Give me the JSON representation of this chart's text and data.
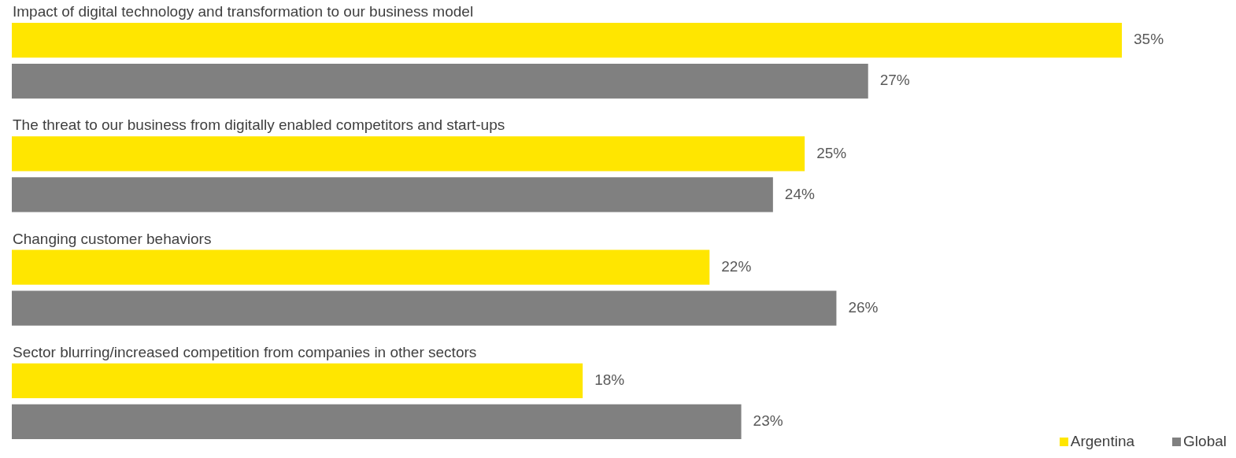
{
  "chart_data": {
    "type": "bar",
    "orientation": "horizontal",
    "categories": [
      "Impact of digital technology and transformation to our business model",
      "The threat to our business from digitally enabled competitors and start-ups",
      "Changing customer behaviors",
      "Sector blurring/increased competition from companies in other sectors"
    ],
    "series": [
      {
        "name": "Argentina",
        "color": "#ffe600",
        "values": [
          35,
          25,
          22,
          18
        ],
        "value_labels": [
          "35%",
          "25%",
          "22%",
          "18%"
        ]
      },
      {
        "name": "Global",
        "color": "#808080",
        "values": [
          27,
          24,
          26,
          23
        ],
        "value_labels": [
          "27%",
          "24%",
          "26%",
          "23%"
        ]
      }
    ],
    "tick_labels": "y",
    "legend": "bottom right"
  }
}
